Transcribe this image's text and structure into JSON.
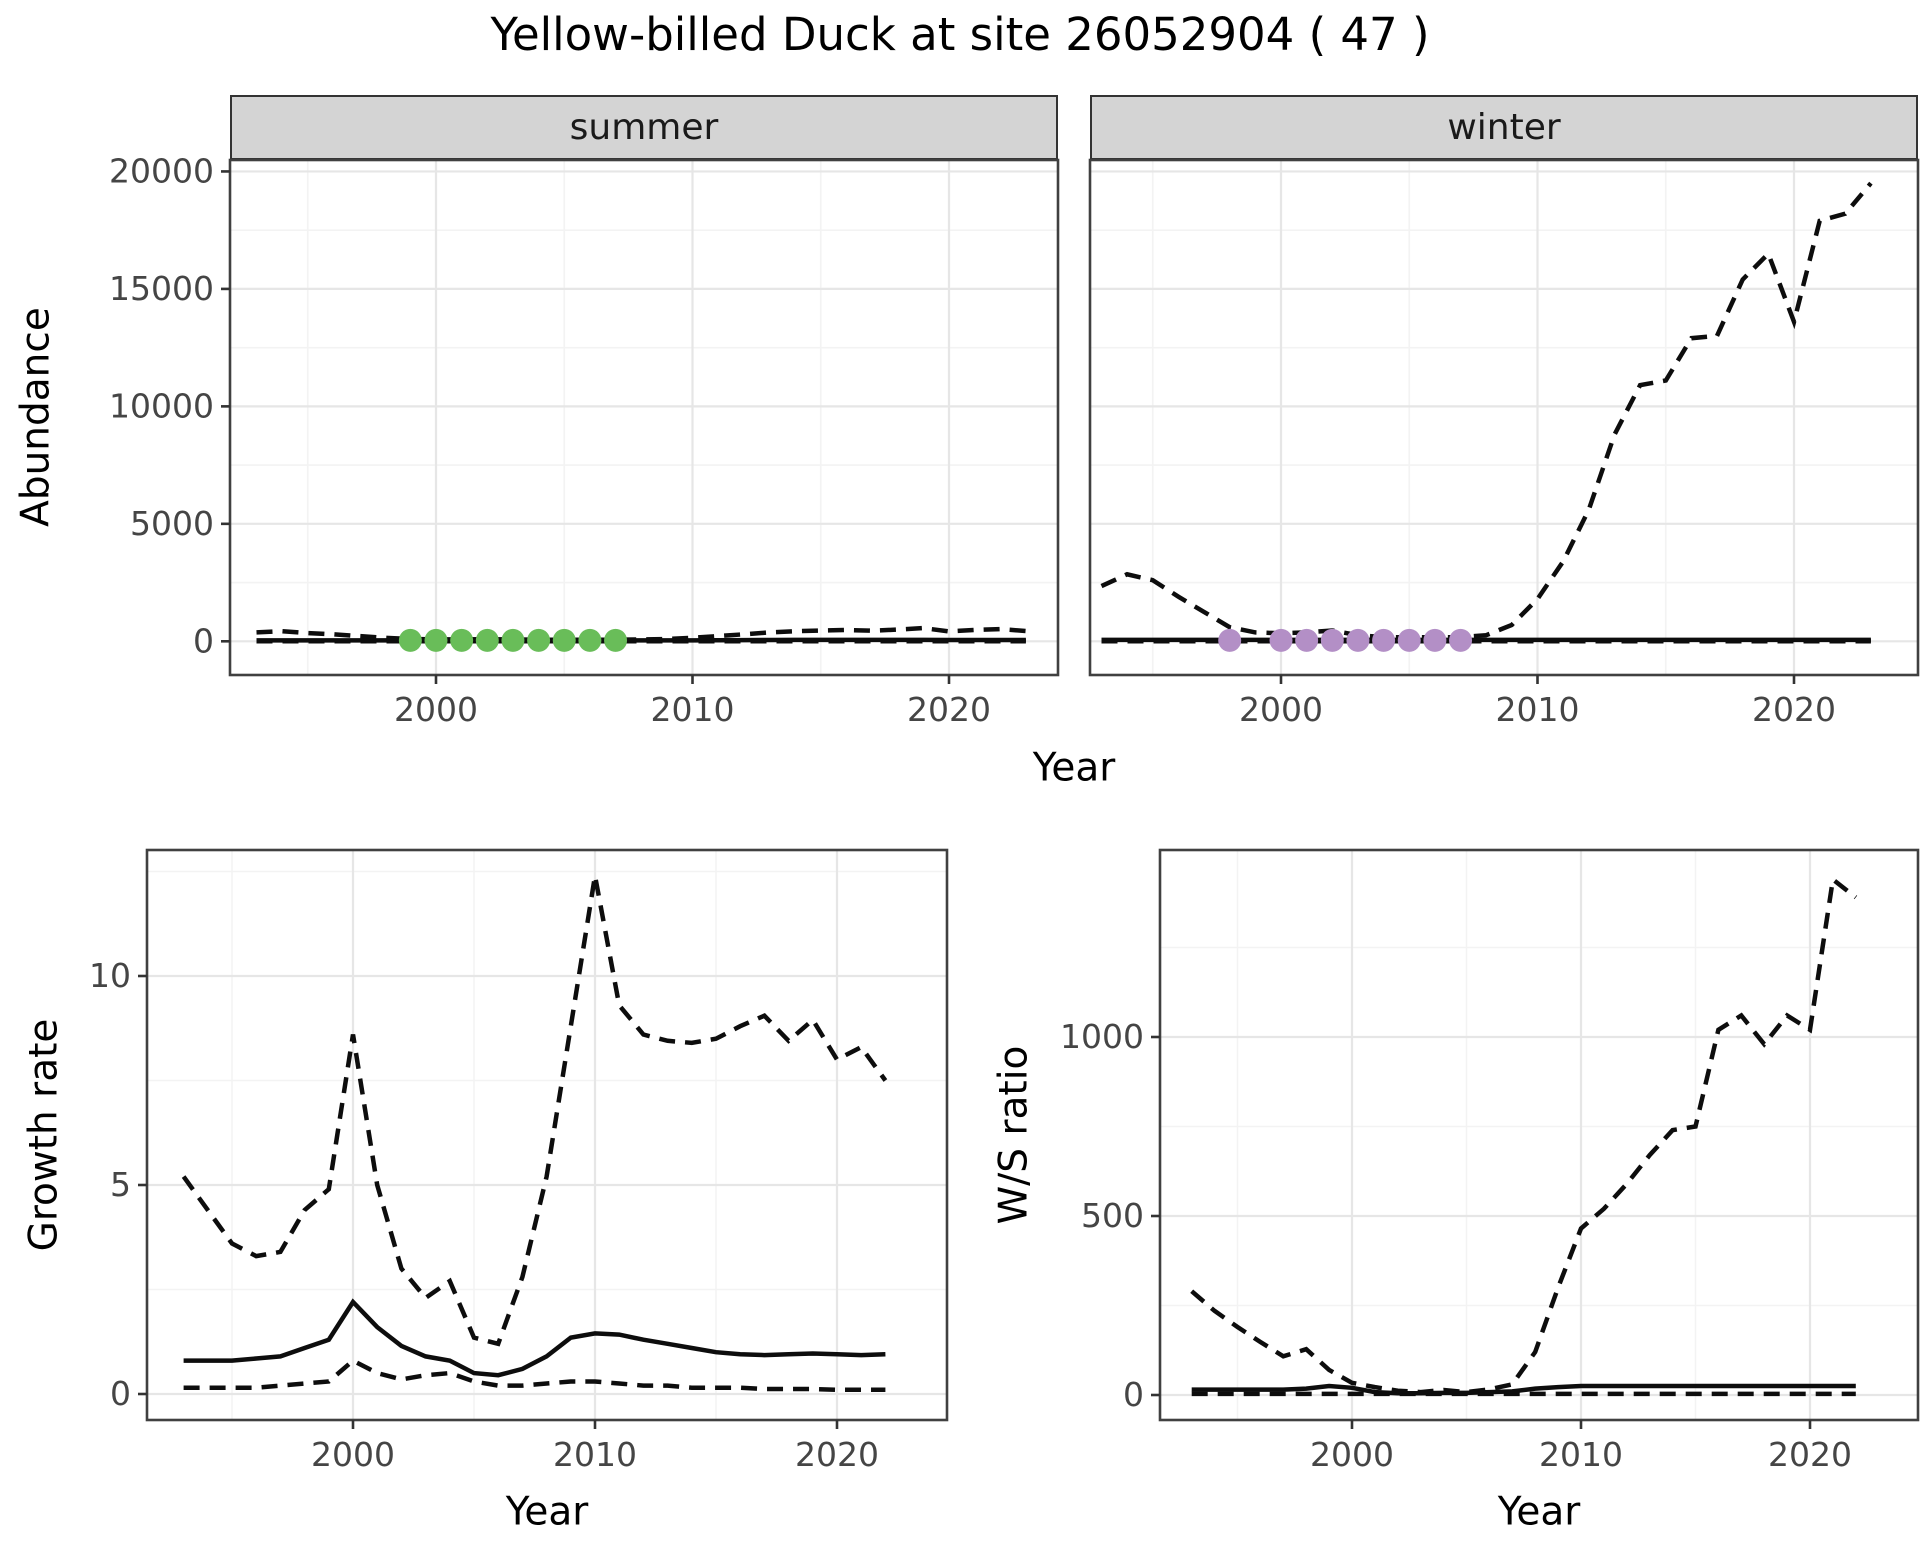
{
  "title": "Yellow-billed Duck at site 26052904 ( 47 )",
  "colors": {
    "line": "#0d0d0d",
    "summer_dots": "#69bd59",
    "winter_dots": "#b38fc6",
    "grid_major": "#e6e6e6",
    "grid_minor": "#f3f3f3",
    "panel_border": "#404040",
    "strip_fill": "#d4d4d4",
    "tick_text": "#454545",
    "tick_mark": "#333333"
  },
  "facets": {
    "summer": "summer",
    "winter": "winter"
  },
  "axis_titles": {
    "abundance": "Abundance",
    "growth": "Growth rate",
    "ws": "W/S ratio",
    "year": "Year"
  },
  "chart_data": [
    {
      "id": "summer",
      "type": "line",
      "facet": "summer",
      "xlabel": "Year",
      "ylabel": "Abundance",
      "x": [
        1993,
        1994,
        1995,
        1996,
        1997,
        1998,
        1999,
        2000,
        2001,
        2002,
        2003,
        2004,
        2005,
        2006,
        2007,
        2008,
        2009,
        2010,
        2011,
        2012,
        2013,
        2014,
        2015,
        2016,
        2017,
        2018,
        2019,
        2020,
        2021,
        2022,
        2023
      ],
      "series": [
        {
          "name": "fit",
          "style": "solid",
          "values": [
            40,
            40,
            40,
            40,
            40,
            40,
            40,
            40,
            40,
            40,
            40,
            40,
            40,
            40,
            40,
            40,
            40,
            40,
            45,
            50,
            55,
            60,
            60,
            60,
            60,
            60,
            60,
            55,
            55,
            55,
            55
          ]
        },
        {
          "name": "upper_ci",
          "style": "dashed",
          "values": [
            380,
            430,
            350,
            300,
            220,
            150,
            100,
            80,
            80,
            90,
            80,
            70,
            70,
            70,
            70,
            80,
            100,
            150,
            220,
            300,
            380,
            430,
            460,
            480,
            450,
            500,
            560,
            420,
            480,
            520,
            440
          ]
        },
        {
          "name": "lower_ci",
          "style": "dashed",
          "values": [
            5,
            5,
            5,
            5,
            5,
            5,
            5,
            5,
            5,
            5,
            5,
            5,
            5,
            5,
            5,
            5,
            5,
            5,
            5,
            5,
            5,
            5,
            5,
            5,
            5,
            5,
            5,
            5,
            5,
            5,
            5
          ]
        }
      ],
      "points": {
        "label": "observed-count-dots",
        "color": "#69bd59",
        "years": [
          1999,
          2000,
          2001,
          2002,
          2003,
          2004,
          2005,
          2006,
          2007
        ],
        "value": 40
      },
      "xlim": [
        1992,
        2024.3
      ],
      "ylim": [
        -1450,
        20475
      ],
      "x_ticks": [
        2000,
        2010,
        2020
      ],
      "y_ticks": [
        0,
        5000,
        10000,
        15000,
        20000
      ],
      "grid": true,
      "legend": "none"
    },
    {
      "id": "winter",
      "type": "line",
      "facet": "winter",
      "xlabel": "Year",
      "ylabel": "Abundance",
      "x": [
        1993,
        1994,
        1995,
        1996,
        1997,
        1998,
        1999,
        2000,
        2001,
        2002,
        2003,
        2004,
        2005,
        2006,
        2007,
        2008,
        2009,
        2010,
        2011,
        2012,
        2013,
        2014,
        2015,
        2016,
        2017,
        2018,
        2019,
        2020,
        2021,
        2022,
        2023
      ],
      "series": [
        {
          "name": "fit",
          "style": "solid",
          "values": [
            60,
            60,
            60,
            60,
            60,
            60,
            60,
            60,
            60,
            60,
            60,
            60,
            60,
            60,
            60,
            60,
            60,
            60,
            60,
            60,
            60,
            60,
            60,
            60,
            60,
            60,
            60,
            60,
            60,
            60,
            60
          ]
        },
        {
          "name": "upper_ci",
          "style": "dashed",
          "values": [
            2350,
            2850,
            2600,
            1900,
            1250,
            600,
            380,
            340,
            380,
            460,
            260,
            180,
            170,
            170,
            180,
            260,
            700,
            1800,
            3400,
            5600,
            8800,
            10900,
            11100,
            12900,
            13000,
            15400,
            16500,
            13600,
            17900,
            18200,
            19500
          ]
        },
        {
          "name": "lower_ci",
          "style": "dashed",
          "values": [
            5,
            5,
            5,
            5,
            5,
            5,
            5,
            5,
            5,
            5,
            5,
            5,
            5,
            5,
            5,
            5,
            5,
            5,
            5,
            5,
            5,
            5,
            5,
            5,
            5,
            5,
            5,
            5,
            5,
            5,
            5
          ]
        }
      ],
      "points": {
        "label": "observed-count-dots",
        "color": "#b38fc6",
        "years": [
          1998,
          2000,
          2001,
          2002,
          2003,
          2004,
          2005,
          2006,
          2007
        ],
        "value": 40
      },
      "xlim": [
        1992.5,
        2024.8
      ],
      "ylim": [
        -1450,
        20475
      ],
      "x_ticks": [
        2000,
        2010,
        2020
      ],
      "y_ticks": [
        0,
        5000,
        10000,
        15000,
        20000
      ],
      "grid": true,
      "legend": "none"
    },
    {
      "id": "growth",
      "type": "line",
      "facet": null,
      "xlabel": "Year",
      "ylabel": "Growth rate",
      "x": [
        1993,
        1994,
        1995,
        1996,
        1997,
        1998,
        1999,
        2000,
        2001,
        2002,
        2003,
        2004,
        2005,
        2006,
        2007,
        2008,
        2009,
        2010,
        2011,
        2012,
        2013,
        2014,
        2015,
        2016,
        2017,
        2018,
        2019,
        2020,
        2021,
        2022
      ],
      "series": [
        {
          "name": "fit",
          "style": "solid",
          "values": [
            0.8,
            0.8,
            0.8,
            0.85,
            0.9,
            1.1,
            1.3,
            2.2,
            1.6,
            1.15,
            0.9,
            0.8,
            0.5,
            0.45,
            0.6,
            0.9,
            1.35,
            1.45,
            1.42,
            1.3,
            1.2,
            1.1,
            1.0,
            0.95,
            0.93,
            0.95,
            0.97,
            0.95,
            0.93,
            0.95
          ]
        },
        {
          "name": "upper_ci",
          "style": "dashed",
          "values": [
            5.2,
            4.4,
            3.6,
            3.3,
            3.4,
            4.4,
            4.9,
            8.6,
            5.0,
            3.0,
            2.3,
            2.7,
            1.35,
            1.2,
            2.8,
            5.2,
            8.8,
            12.4,
            9.3,
            8.6,
            8.45,
            8.4,
            8.5,
            8.8,
            9.05,
            8.45,
            8.95,
            8.0,
            8.3,
            7.5
          ]
        },
        {
          "name": "lower_ci",
          "style": "dashed",
          "values": [
            0.15,
            0.15,
            0.15,
            0.15,
            0.2,
            0.25,
            0.3,
            0.8,
            0.5,
            0.35,
            0.45,
            0.5,
            0.3,
            0.2,
            0.2,
            0.25,
            0.3,
            0.3,
            0.25,
            0.2,
            0.2,
            0.15,
            0.15,
            0.15,
            0.12,
            0.12,
            0.12,
            0.1,
            0.1,
            0.1
          ]
        }
      ],
      "points": null,
      "xlim": [
        1991.5,
        2024.5
      ],
      "ylim": [
        -0.62,
        13.0
      ],
      "x_ticks": [
        2000,
        2010,
        2020
      ],
      "y_ticks": [
        0,
        5,
        10
      ],
      "grid": true,
      "legend": "none"
    },
    {
      "id": "ws",
      "type": "line",
      "facet": null,
      "xlabel": "Year",
      "ylabel": "W/S ratio",
      "x": [
        1993,
        1994,
        1995,
        1996,
        1997,
        1998,
        1999,
        2000,
        2001,
        2002,
        2003,
        2004,
        2005,
        2006,
        2007,
        2008,
        2009,
        2010,
        2011,
        2012,
        2013,
        2014,
        2015,
        2016,
        2017,
        2018,
        2019,
        2020,
        2021,
        2022
      ],
      "series": [
        {
          "name": "fit",
          "style": "solid",
          "values": [
            15,
            15,
            15,
            15,
            15,
            18,
            25,
            20,
            8,
            5,
            5,
            6,
            6,
            8,
            10,
            18,
            22,
            25,
            25,
            25,
            25,
            25,
            25,
            25,
            25,
            25,
            25,
            25,
            25,
            25
          ]
        },
        {
          "name": "upper_ci",
          "style": "dashed",
          "values": [
            290,
            235,
            190,
            148,
            108,
            128,
            70,
            34,
            22,
            12,
            8,
            14,
            8,
            16,
            30,
            120,
            300,
            465,
            520,
            590,
            670,
            740,
            750,
            1020,
            1060,
            980,
            1060,
            1020,
            1440,
            1390
          ]
        },
        {
          "name": "lower_ci",
          "style": "dashed",
          "values": [
            3,
            3,
            3,
            3,
            3,
            3,
            3,
            3,
            3,
            3,
            3,
            3,
            3,
            3,
            3,
            3,
            3,
            3,
            3,
            3,
            3,
            3,
            3,
            3,
            3,
            3,
            3,
            3,
            3,
            3
          ]
        }
      ],
      "points": null,
      "xlim": [
        1991.6,
        2024.7
      ],
      "ylim": [
        -70,
        1522
      ],
      "x_ticks": [
        2000,
        2010,
        2020
      ],
      "y_ticks": [
        0,
        500,
        1000
      ],
      "grid": true,
      "legend": "none"
    }
  ]
}
